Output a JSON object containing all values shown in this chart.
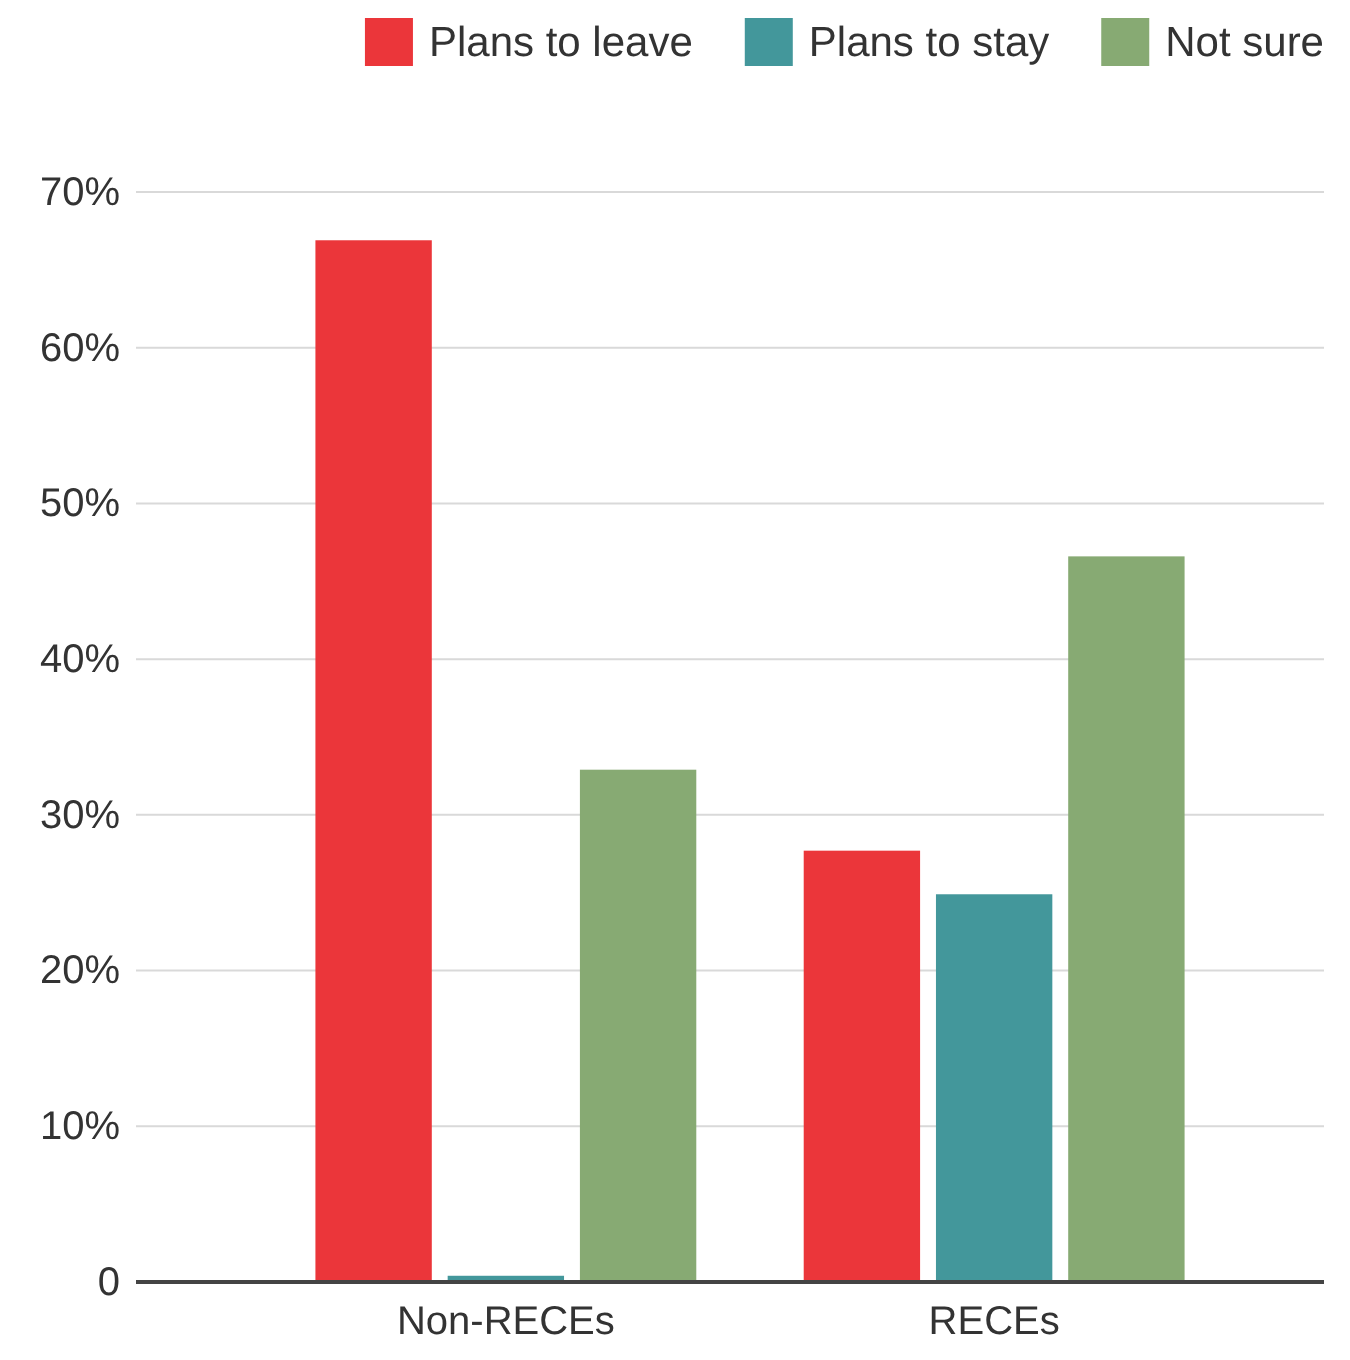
{
  "chart_data": {
    "type": "bar",
    "categories": [
      "Non-RECEs",
      "RECEs"
    ],
    "series": [
      {
        "name": "Plans to leave",
        "color": "#eb363a",
        "values": [
          66.9,
          27.7
        ]
      },
      {
        "name": "Plans to stay",
        "color": "#43979b",
        "values": [
          0.4,
          24.9
        ]
      },
      {
        "name": "Not sure",
        "color": "#87aa73",
        "values": [
          32.9,
          46.6
        ]
      }
    ],
    "ylim": [
      0,
      70
    ],
    "yticks": [
      {
        "value": 0,
        "label": "0"
      },
      {
        "value": 10,
        "label": "10%"
      },
      {
        "value": 20,
        "label": "20%"
      },
      {
        "value": 30,
        "label": "30%"
      },
      {
        "value": 40,
        "label": "40%"
      },
      {
        "value": 50,
        "label": "50%"
      },
      {
        "value": 60,
        "label": "60%"
      },
      {
        "value": 70,
        "label": "70%"
      }
    ],
    "grid": "y",
    "legend": "top right"
  }
}
